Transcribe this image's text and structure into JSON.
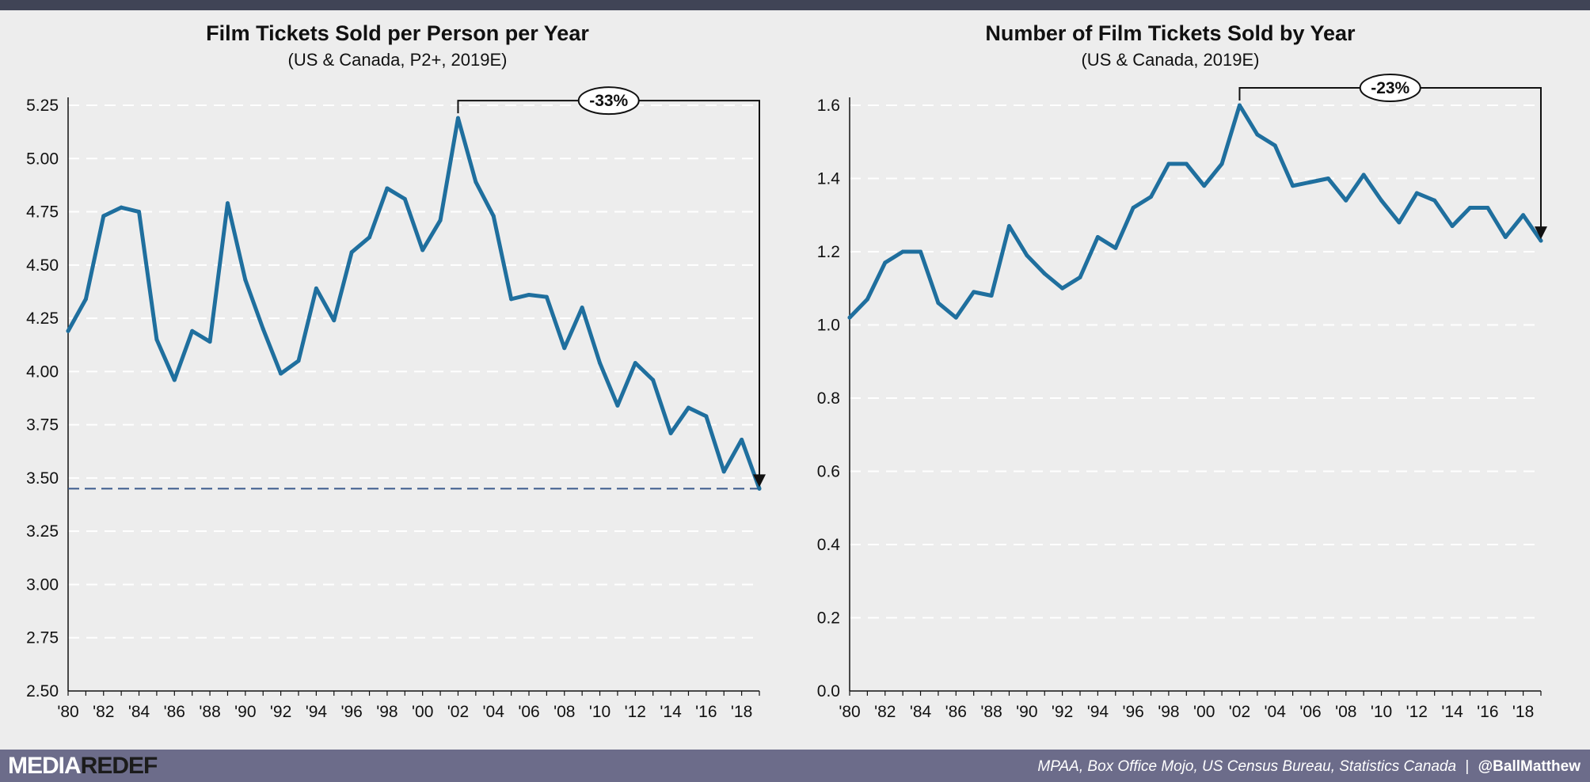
{
  "chart_data": [
    {
      "type": "line",
      "title": "Film Tickets Sold per Person per Year",
      "subtitle": "(US & Canada, P2+, 2019E)",
      "xlabel": "",
      "ylabel": "",
      "x": [
        1980,
        1981,
        1982,
        1983,
        1984,
        1985,
        1986,
        1987,
        1988,
        1989,
        1990,
        1991,
        1992,
        1993,
        1994,
        1995,
        1996,
        1997,
        1998,
        1999,
        2000,
        2001,
        2002,
        2003,
        2004,
        2005,
        2006,
        2007,
        2008,
        2009,
        2010,
        2011,
        2012,
        2013,
        2014,
        2015,
        2016,
        2017,
        2018,
        2019
      ],
      "series": [
        {
          "values": [
            4.19,
            4.34,
            4.73,
            4.77,
            4.75,
            4.15,
            3.96,
            4.19,
            4.14,
            4.79,
            4.43,
            4.2,
            3.99,
            4.05,
            4.39,
            4.24,
            4.56,
            4.63,
            4.86,
            4.81,
            4.57,
            4.71,
            5.19,
            4.89,
            4.73,
            4.34,
            4.36,
            4.35,
            4.11,
            4.3,
            4.04,
            3.84,
            4.04,
            3.96,
            3.71,
            3.83,
            3.79,
            3.53,
            3.68,
            3.45
          ],
          "color": "#1f6f9e"
        }
      ],
      "xticks": [
        "'80",
        "'82",
        "'84",
        "'86",
        "'88",
        "'90",
        "'92",
        "'94",
        "'96",
        "'98",
        "'00",
        "'02",
        "'04",
        "'06",
        "'08",
        "'10",
        "'12",
        "'14",
        "'16",
        "'18"
      ],
      "yticks": [
        "2.50",
        "2.75",
        "3.00",
        "3.25",
        "3.50",
        "3.75",
        "4.00",
        "4.25",
        "4.50",
        "4.75",
        "5.00",
        "5.25"
      ],
      "ylim": [
        2.5,
        5.25
      ],
      "grid": true,
      "reference_line": 3.45,
      "reference_color": "#3a5a8c",
      "callout": {
        "label": "-33%",
        "from_x": 2002,
        "to_x": 2019
      }
    },
    {
      "type": "line",
      "title": "Number of Film Tickets Sold by Year",
      "subtitle": "(US & Canada, 2019E)",
      "xlabel": "",
      "ylabel": "",
      "x": [
        1980,
        1981,
        1982,
        1983,
        1984,
        1985,
        1986,
        1987,
        1988,
        1989,
        1990,
        1991,
        1992,
        1993,
        1994,
        1995,
        1996,
        1997,
        1998,
        1999,
        2000,
        2001,
        2002,
        2003,
        2004,
        2005,
        2006,
        2007,
        2008,
        2009,
        2010,
        2011,
        2012,
        2013,
        2014,
        2015,
        2016,
        2017,
        2018,
        2019
      ],
      "series": [
        {
          "values": [
            1.02,
            1.07,
            1.17,
            1.2,
            1.2,
            1.06,
            1.02,
            1.09,
            1.08,
            1.27,
            1.19,
            1.14,
            1.1,
            1.13,
            1.24,
            1.21,
            1.32,
            1.35,
            1.44,
            1.44,
            1.38,
            1.44,
            1.6,
            1.52,
            1.49,
            1.38,
            1.39,
            1.4,
            1.34,
            1.41,
            1.34,
            1.28,
            1.36,
            1.34,
            1.27,
            1.32,
            1.32,
            1.24,
            1.3,
            1.23
          ],
          "color": "#1f6f9e"
        }
      ],
      "xticks": [
        "'80",
        "'82",
        "'84",
        "'86",
        "'88",
        "'90",
        "'92",
        "'94",
        "'96",
        "'98",
        "'00",
        "'02",
        "'04",
        "'06",
        "'08",
        "'10",
        "'12",
        "'14",
        "'16",
        "'18"
      ],
      "yticks": [
        "0.0",
        "0.2",
        "0.4",
        "0.6",
        "0.8",
        "1.0",
        "1.2",
        "1.4",
        "1.6"
      ],
      "ylim": [
        0,
        1.6
      ],
      "grid": true,
      "callout": {
        "label": "-23%",
        "from_x": 2002,
        "to_x": 2019
      }
    }
  ],
  "footer": {
    "logo_part1": "MEDIA",
    "logo_part2": "REDEF",
    "source": "MPAA, Box Office Mojo, US Census Bureau, Statistics Canada",
    "separator": "|",
    "handle": "@BallMatthew"
  },
  "colors": {
    "header_bar": "#404456",
    "footer_bar": "#6c6c8a",
    "background": "#ededed",
    "line": "#1f6f9e"
  }
}
